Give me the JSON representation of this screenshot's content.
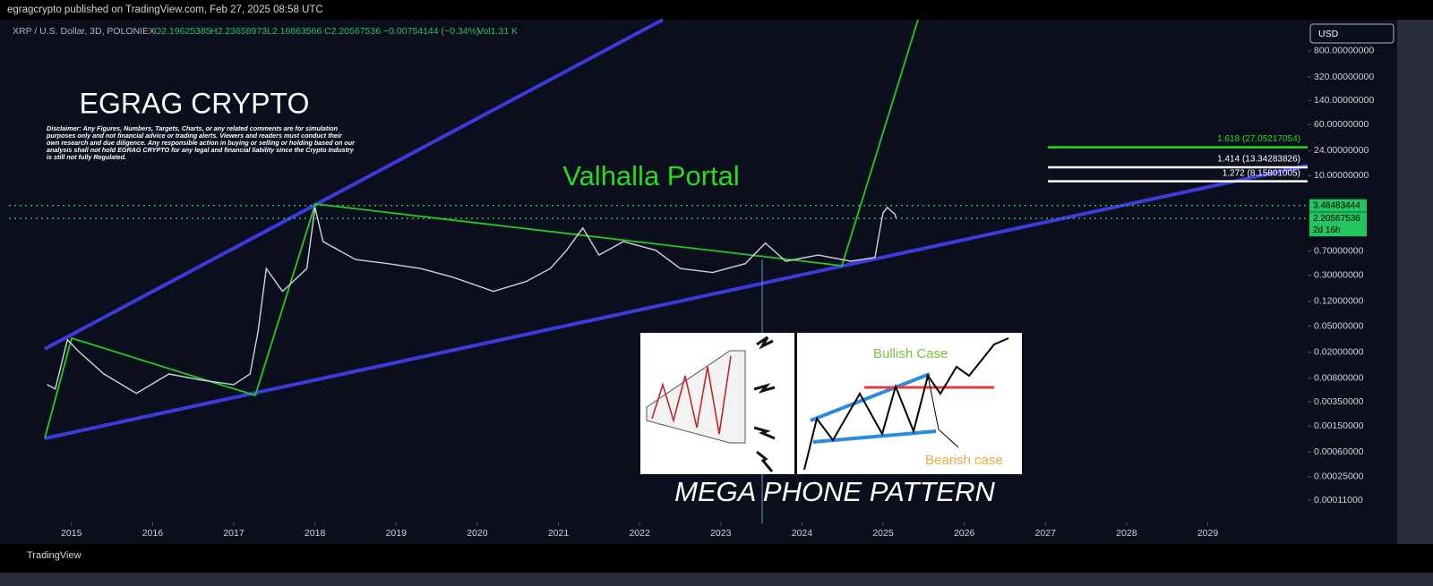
{
  "header": {
    "publisher": "egragcrypto published on TradingView.com, Feb 27, 2025 08:58 UTC",
    "symbol": "XRP / U.S. Dollar, 3D, POLONIEX",
    "open": "O2.19625385",
    "high": "H2.23658973",
    "low": "L2.16863566",
    "close": "C2.20567536",
    "change": "−0.00754144 (−0.34%)",
    "volume": "Vol1.31 K",
    "currency": "USD"
  },
  "footer": {
    "brand": "TradingView"
  },
  "chart_data": {
    "type": "line",
    "log_scale": true,
    "title": "EGRAG CRYPTO",
    "disclaimer": "Disclaimer: Any Figures, Numbers, Targets, Charts, or any related comments are for simulation purposes only and not financial advice or trading alerts. Viewers and readers must conduct their own research and due diligence. Any responsible action in buying or selling or holding based on our analysis shall not hold EGRAG CRYPTO for any legal and financial liability since the Crypto Industry is still not fully Regulated.",
    "annotations": [
      "Valhalla Portal",
      "MEGA PHONE PATTERN",
      "Bullish Case",
      "Bearish case"
    ],
    "xlim": [
      2014.23,
      2030.23
    ],
    "xticks": [
      2015,
      2016,
      2017,
      2018,
      2019,
      2020,
      2021,
      2022,
      2023,
      2024,
      2025,
      2026,
      2027,
      2028,
      2029
    ],
    "ylim": [
      5.68e-05,
      2404
    ],
    "yticks": [
      {
        "value": 800,
        "label": "800.00000000"
      },
      {
        "value": 320,
        "label": "320.00000000"
      },
      {
        "value": 140,
        "label": "140.00000000"
      },
      {
        "value": 60,
        "label": "60.00000000"
      },
      {
        "value": 24,
        "label": "24.00000000"
      },
      {
        "value": 10,
        "label": "10.00000000"
      },
      {
        "value": 0.7,
        "label": "0.70000000"
      },
      {
        "value": 0.3,
        "label": "0.30000000"
      },
      {
        "value": 0.12,
        "label": "0.12000000"
      },
      {
        "value": 0.05,
        "label": "0.05000000"
      },
      {
        "value": 0.02,
        "label": "0.02000000"
      },
      {
        "value": 0.008,
        "label": "0.00800000"
      },
      {
        "value": 0.0035,
        "label": "0.00350000"
      },
      {
        "value": 0.0015,
        "label": "0.00150000"
      },
      {
        "value": 0.0006,
        "label": "0.00060000"
      },
      {
        "value": 0.00025,
        "label": "0.00025000"
      },
      {
        "value": 0.00011,
        "label": "0.00011000"
      }
    ],
    "series": [
      {
        "name": "XRP / U.S. Dollar",
        "color": "#d0d4dc",
        "x": [
          2014.7,
          2014.8,
          2014.95,
          2015.1,
          2015.4,
          2015.8,
          2016.2,
          2016.6,
          2017.0,
          2017.2,
          2017.3,
          2017.4,
          2017.6,
          2017.9,
          2018.0,
          2018.1,
          2018.5,
          2018.9,
          2019.3,
          2019.7,
          2020.2,
          2020.6,
          2020.9,
          2021.1,
          2021.3,
          2021.5,
          2021.8,
          2022.2,
          2022.5,
          2022.9,
          2023.3,
          2023.55,
          2023.8,
          2024.2,
          2024.6,
          2024.9,
          2024.95,
          2025.0,
          2025.05,
          2025.15,
          2025.16
        ],
        "values": [
          0.0064,
          0.0055,
          0.031,
          0.0199,
          0.0093,
          0.0047,
          0.0093,
          0.0075,
          0.0064,
          0.0093,
          0.042,
          0.38,
          0.17,
          0.38,
          3.25,
          0.98,
          0.52,
          0.45,
          0.38,
          0.28,
          0.17,
          0.24,
          0.38,
          0.72,
          1.58,
          0.61,
          0.98,
          0.72,
          0.38,
          0.33,
          0.45,
          0.93,
          0.49,
          0.61,
          0.49,
          0.56,
          1.26,
          2.69,
          3.25,
          2.53,
          2.21
        ]
      }
    ],
    "price_lines": [
      3.48483444,
      2.20567536
    ],
    "price_line_color": "#22c55e",
    "countdown": "2d 16h",
    "fib_levels": [
      {
        "value": 27.05217054,
        "label": "1.618 (27.05217054)",
        "color": "#22dd22"
      },
      {
        "value": 13.34283826,
        "label": "1.414 (13.34283826)",
        "color": "#ffffff"
      },
      {
        "value": 8.15801005,
        "label": "1.272 (8.15801005)",
        "color": "#ffffff"
      }
    ]
  }
}
